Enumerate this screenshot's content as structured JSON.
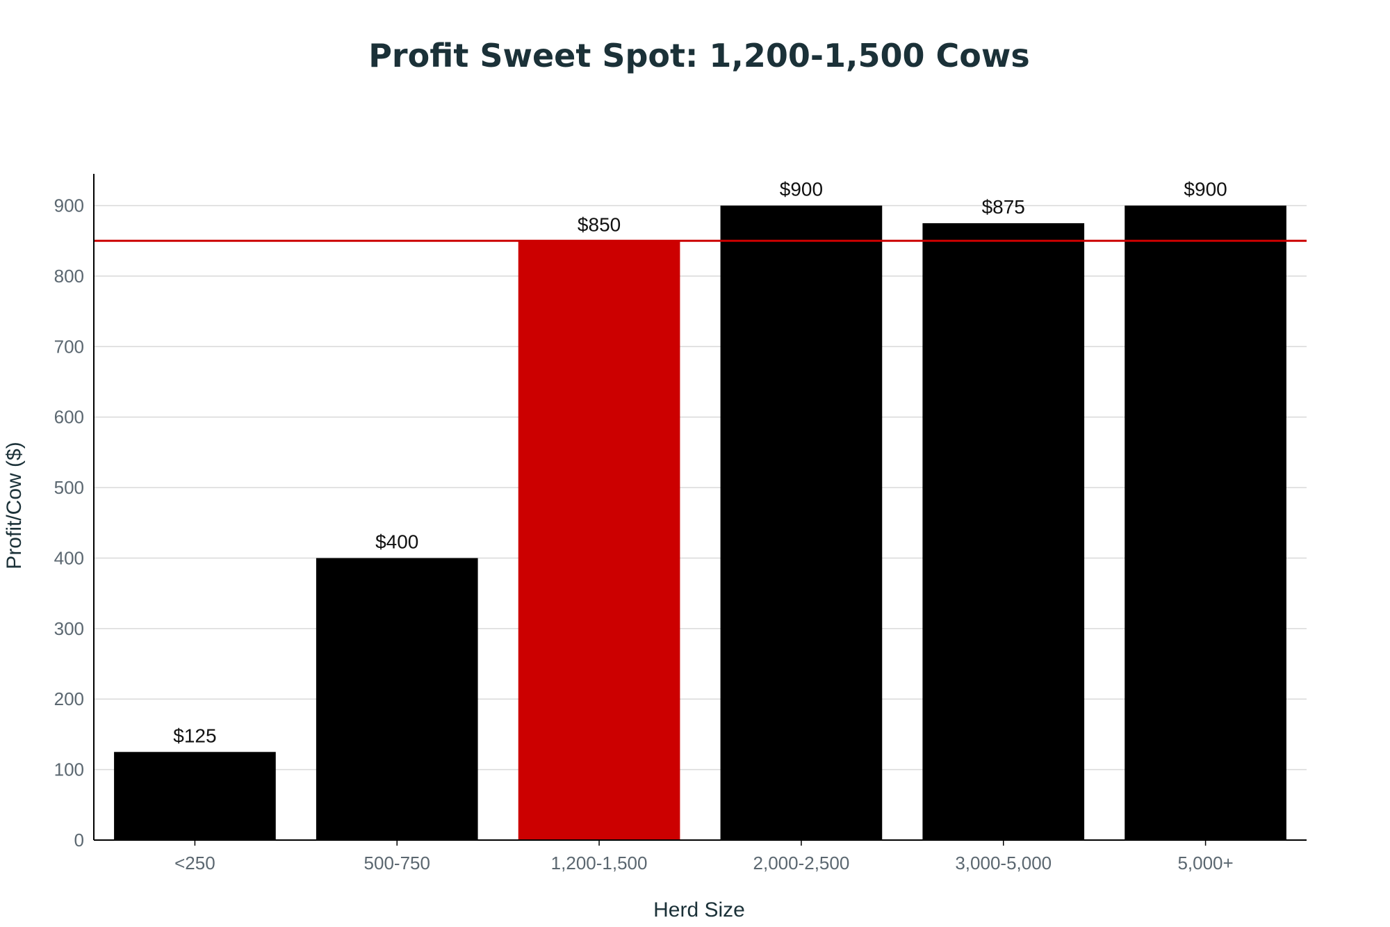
{
  "chart_data": {
    "type": "bar",
    "title": "Profit Sweet Spot: 1,200-1,500 Cows",
    "xlabel": "Herd Size",
    "ylabel": "Profit/Cow ($)",
    "categories": [
      "<250",
      "500-750",
      "1,200-1,500",
      "2,000-2,500",
      "3,000-5,000",
      "5,000+"
    ],
    "values": [
      125,
      400,
      850,
      900,
      875,
      900
    ],
    "value_labels": [
      "$125",
      "$400",
      "$850",
      "$900",
      "$875",
      "$900"
    ],
    "highlight_category": "1,200-1,500",
    "ylim": [
      0,
      945
    ],
    "yticks": [
      0,
      100,
      200,
      300,
      400,
      500,
      600,
      700,
      800,
      900
    ],
    "reference_line": {
      "value": 850
    },
    "grid": true,
    "legend": "none",
    "colors": {
      "bar": "#000000",
      "highlight": "#cc0000",
      "reference_line": "#cc0000",
      "grid": "#d9d9d9",
      "axis": "#000000",
      "title": "#1b3138"
    }
  }
}
